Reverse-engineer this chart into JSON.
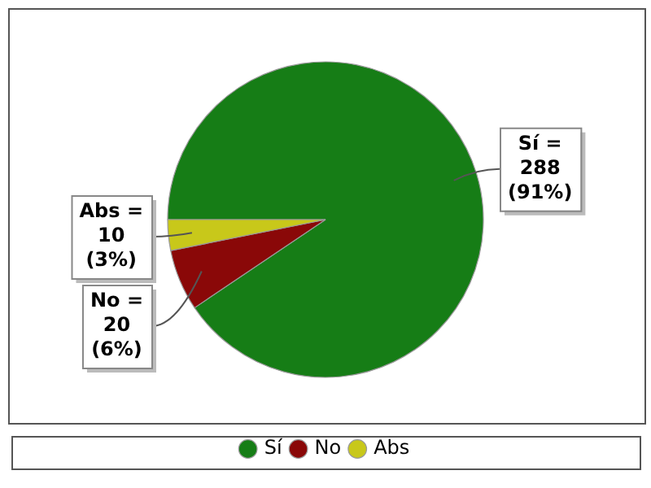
{
  "chart_data": {
    "type": "pie",
    "categories": [
      "Sí",
      "No",
      "Abs"
    ],
    "values": [
      288,
      20,
      10
    ],
    "colors": [
      "#167d16",
      "#8a0808",
      "#c8c81a"
    ],
    "value_labels": [
      "Sí = 288 (91%)",
      "No = 20 (6%)",
      "Abs = 10 (3%)"
    ],
    "legend": "bottom"
  }
}
